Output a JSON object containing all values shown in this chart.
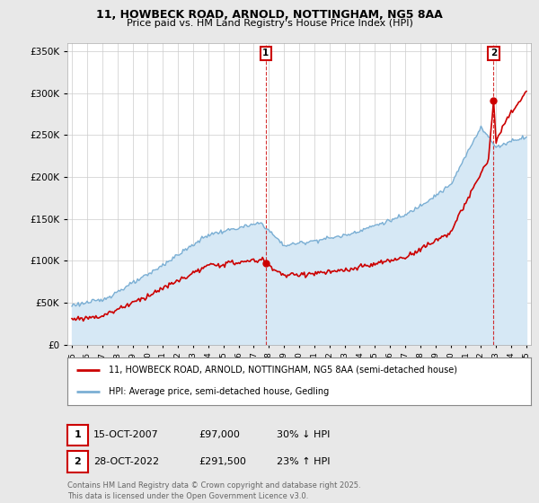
{
  "title": "11, HOWBECK ROAD, ARNOLD, NOTTINGHAM, NG5 8AA",
  "subtitle": "Price paid vs. HM Land Registry's House Price Index (HPI)",
  "legend_line1": "11, HOWBECK ROAD, ARNOLD, NOTTINGHAM, NG5 8AA (semi-detached house)",
  "legend_line2": "HPI: Average price, semi-detached house, Gedling",
  "annotation1_date": "15-OCT-2007",
  "annotation1_price": "£97,000",
  "annotation1_hpi": "30% ↓ HPI",
  "annotation1_year": 2007.79,
  "annotation1_value": 97000,
  "annotation2_date": "28-OCT-2022",
  "annotation2_price": "£291,500",
  "annotation2_hpi": "23% ↑ HPI",
  "annotation2_year": 2022.83,
  "annotation2_value": 291500,
  "hpi_color": "#7bafd4",
  "hpi_fill_color": "#d6e8f5",
  "price_color": "#cc0000",
  "annotation_color": "#cc0000",
  "background_color": "#e8e8e8",
  "plot_background": "#ffffff",
  "ylim": [
    0,
    360000
  ],
  "yticks": [
    0,
    50000,
    100000,
    150000,
    200000,
    250000,
    300000,
    350000
  ],
  "footer": "Contains HM Land Registry data © Crown copyright and database right 2025.\nThis data is licensed under the Open Government Licence v3.0."
}
